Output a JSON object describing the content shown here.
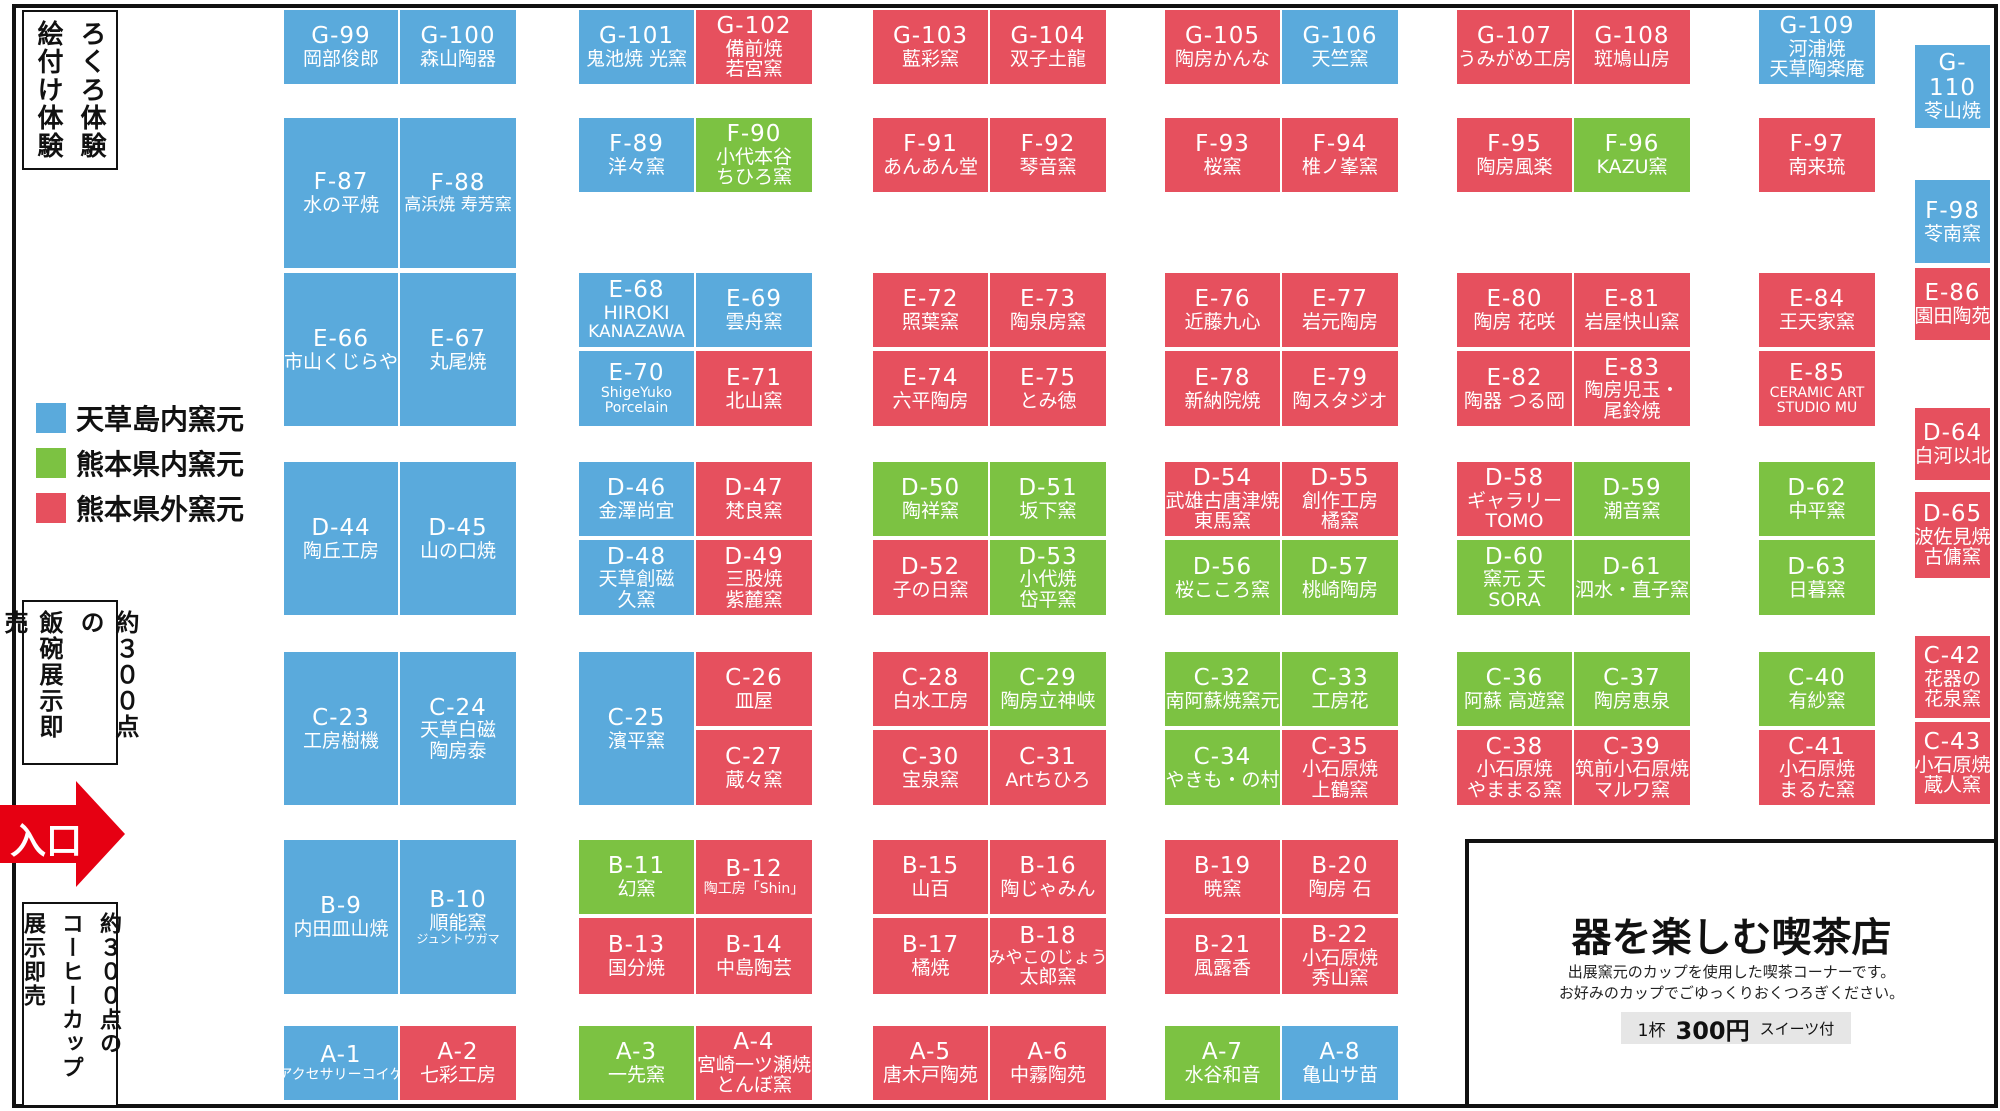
{
  "colors": {
    "amakusa": "#5aaadc",
    "kumamoto": "#7cc242",
    "outside": "#e6505e"
  },
  "legend": [
    {
      "key": "amakusa",
      "label": "天草島内窯元"
    },
    {
      "key": "kumamoto",
      "label": "熊本県内窯元"
    },
    {
      "key": "outside",
      "label": "熊本県外窯元"
    }
  ],
  "side_boxes": {
    "rokuro": [
      "ろくろ体験",
      "絵付け体験"
    ],
    "bowls": [
      "約３００点の",
      "飯碗展示即売"
    ],
    "cups": [
      "約３００点の",
      "コーヒーカップ",
      "展示即売"
    ]
  },
  "entrance": {
    "label": "入口"
  },
  "cafe": {
    "title": "器を楽しむ喫茶店",
    "description": [
      "出展窯元のカップを使用した喫茶コーナーです。",
      "お好みのカップでごゆっくりおくつろぎください。"
    ],
    "price_unit": "1杯",
    "price": "300円",
    "price_note": "スイーツ付"
  },
  "booths": [
    {
      "code": "G-99",
      "name": "岡部俊郎",
      "cat": "amakusa"
    },
    {
      "code": "G-100",
      "name": "森山陶器",
      "cat": "amakusa"
    },
    {
      "code": "G-101",
      "name": "鬼池焼 光窯",
      "cat": "amakusa"
    },
    {
      "code": "G-102",
      "name": "備前焼\n若宮窯",
      "cat": "outside"
    },
    {
      "code": "G-103",
      "name": "藍彩窯",
      "cat": "outside"
    },
    {
      "code": "G-104",
      "name": "双子土龍",
      "cat": "outside"
    },
    {
      "code": "G-105",
      "name": "陶房かんな",
      "cat": "outside"
    },
    {
      "code": "G-106",
      "name": "天竺窯",
      "cat": "amakusa"
    },
    {
      "code": "G-107",
      "name": "うみがめ工房",
      "cat": "outside"
    },
    {
      "code": "G-108",
      "name": "斑鳩山房",
      "cat": "outside"
    },
    {
      "code": "G-109",
      "name": "河浦焼\n天草陶楽庵",
      "cat": "amakusa"
    },
    {
      "code": "G-110",
      "name": "苓山焼",
      "cat": "amakusa"
    },
    {
      "code": "F-87",
      "name": "水の平焼",
      "cat": "amakusa"
    },
    {
      "code": "F-88",
      "name": "高浜焼 寿芳窯",
      "cat": "amakusa"
    },
    {
      "code": "F-89",
      "name": "洋々窯",
      "cat": "amakusa"
    },
    {
      "code": "F-90",
      "name": "小代本谷\nちひろ窯",
      "cat": "kumamoto"
    },
    {
      "code": "F-91",
      "name": "あんあん堂",
      "cat": "outside"
    },
    {
      "code": "F-92",
      "name": "琴音窯",
      "cat": "outside"
    },
    {
      "code": "F-93",
      "name": "桜窯",
      "cat": "outside"
    },
    {
      "code": "F-94",
      "name": "椎ノ峯窯",
      "cat": "outside"
    },
    {
      "code": "F-95",
      "name": "陶房風楽",
      "cat": "outside"
    },
    {
      "code": "F-96",
      "name": "KAZU窯",
      "cat": "kumamoto"
    },
    {
      "code": "F-97",
      "name": "南来琉",
      "cat": "outside"
    },
    {
      "code": "F-98",
      "name": "苓南窯",
      "cat": "amakusa"
    },
    {
      "code": "E-66",
      "name": "市山くじらや",
      "cat": "amakusa"
    },
    {
      "code": "E-67",
      "name": "丸尾焼",
      "cat": "amakusa"
    },
    {
      "code": "E-68",
      "name": "HIROKI\nKANAZAWA",
      "cat": "amakusa"
    },
    {
      "code": "E-69",
      "name": "雲舟窯",
      "cat": "amakusa"
    },
    {
      "code": "E-70",
      "name": "ShigeYuko\nPorcelain",
      "cat": "amakusa"
    },
    {
      "code": "E-71",
      "name": "北山窯",
      "cat": "outside"
    },
    {
      "code": "E-72",
      "name": "照葉窯",
      "cat": "outside"
    },
    {
      "code": "E-73",
      "name": "陶泉房窯",
      "cat": "outside"
    },
    {
      "code": "E-74",
      "name": "六平陶房",
      "cat": "outside"
    },
    {
      "code": "E-75",
      "name": "とみ徳",
      "cat": "outside"
    },
    {
      "code": "E-76",
      "name": "近藤九心",
      "cat": "outside"
    },
    {
      "code": "E-77",
      "name": "岩元陶房",
      "cat": "outside"
    },
    {
      "code": "E-78",
      "name": "新納院焼",
      "cat": "outside"
    },
    {
      "code": "E-79",
      "name": "陶スタジオ",
      "cat": "outside"
    },
    {
      "code": "E-80",
      "name": "陶房 花咲",
      "cat": "outside"
    },
    {
      "code": "E-81",
      "name": "岩屋快山窯",
      "cat": "outside"
    },
    {
      "code": "E-82",
      "name": "陶器 つる岡",
      "cat": "outside"
    },
    {
      "code": "E-83",
      "name": "陶房児玉・\n尾鈴焼",
      "cat": "outside"
    },
    {
      "code": "E-84",
      "name": "王天家窯",
      "cat": "outside"
    },
    {
      "code": "E-85",
      "name": "CERAMIC ART\nSTUDIO MU",
      "cat": "outside"
    },
    {
      "code": "E-86",
      "name": "園田陶苑",
      "cat": "outside"
    },
    {
      "code": "D-44",
      "name": "陶丘工房",
      "cat": "amakusa"
    },
    {
      "code": "D-45",
      "name": "山の口焼",
      "cat": "amakusa"
    },
    {
      "code": "D-46",
      "name": "金澤尚宜",
      "cat": "amakusa"
    },
    {
      "code": "D-47",
      "name": "梵良窯",
      "cat": "outside"
    },
    {
      "code": "D-48",
      "name": "天草創磁\n久窯",
      "cat": "amakusa"
    },
    {
      "code": "D-49",
      "name": "三股焼\n紫麓窯",
      "cat": "outside"
    },
    {
      "code": "D-50",
      "name": "陶祥窯",
      "cat": "kumamoto"
    },
    {
      "code": "D-51",
      "name": "坂下窯",
      "cat": "kumamoto"
    },
    {
      "code": "D-52",
      "name": "子の日窯",
      "cat": "outside"
    },
    {
      "code": "D-53",
      "name": "小代焼\n岱平窯",
      "cat": "kumamoto"
    },
    {
      "code": "D-54",
      "name": "武雄古唐津焼\n東馬窯",
      "cat": "outside"
    },
    {
      "code": "D-55",
      "name": "創作工房\n橘窯",
      "cat": "outside"
    },
    {
      "code": "D-56",
      "name": "桜こころ窯",
      "cat": "kumamoto"
    },
    {
      "code": "D-57",
      "name": "桃崎陶房",
      "cat": "kumamoto"
    },
    {
      "code": "D-58",
      "name": "ギャラリー\nTOMO",
      "cat": "outside"
    },
    {
      "code": "D-59",
      "name": "潮音窯",
      "cat": "kumamoto"
    },
    {
      "code": "D-60",
      "name": "窯元 天\nSORA",
      "cat": "kumamoto"
    },
    {
      "code": "D-61",
      "name": "泗水・直子窯",
      "cat": "kumamoto"
    },
    {
      "code": "D-62",
      "name": "中平窯",
      "cat": "kumamoto"
    },
    {
      "code": "D-63",
      "name": "日暮窯",
      "cat": "kumamoto"
    },
    {
      "code": "D-64",
      "name": "白河以北",
      "cat": "outside"
    },
    {
      "code": "D-65",
      "name": "波佐見焼\n古傭窯",
      "cat": "outside"
    },
    {
      "code": "C-23",
      "name": "工房樹機",
      "cat": "amakusa"
    },
    {
      "code": "C-24",
      "name": "天草白磁\n陶房泰",
      "cat": "amakusa"
    },
    {
      "code": "C-25",
      "name": "濱平窯",
      "cat": "amakusa"
    },
    {
      "code": "C-26",
      "name": "皿屋",
      "cat": "outside"
    },
    {
      "code": "C-27",
      "name": "蔵々窯",
      "cat": "outside"
    },
    {
      "code": "C-28",
      "name": "白水工房",
      "cat": "outside"
    },
    {
      "code": "C-29",
      "name": "陶房立神峡",
      "cat": "kumamoto"
    },
    {
      "code": "C-30",
      "name": "宝泉窯",
      "cat": "outside"
    },
    {
      "code": "C-31",
      "name": "Artちひろ",
      "cat": "outside"
    },
    {
      "code": "C-32",
      "name": "南阿蘇焼窯元",
      "cat": "kumamoto"
    },
    {
      "code": "C-33",
      "name": "工房花",
      "cat": "kumamoto"
    },
    {
      "code": "C-34",
      "name": "やきも・の村",
      "cat": "kumamoto"
    },
    {
      "code": "C-35",
      "name": "小石原焼\n上鶴窯",
      "cat": "outside"
    },
    {
      "code": "C-36",
      "name": "阿蘇 高遊窯",
      "cat": "kumamoto"
    },
    {
      "code": "C-37",
      "name": "陶房恵泉",
      "cat": "kumamoto"
    },
    {
      "code": "C-38",
      "name": "小石原焼\nやままる窯",
      "cat": "outside"
    },
    {
      "code": "C-39",
      "name": "筑前小石原焼\nマルワ窯",
      "cat": "outside"
    },
    {
      "code": "C-40",
      "name": "有紗窯",
      "cat": "kumamoto"
    },
    {
      "code": "C-41",
      "name": "小石原焼\nまるた窯",
      "cat": "outside"
    },
    {
      "code": "C-42",
      "name": "花器の\n花泉窯",
      "cat": "outside"
    },
    {
      "code": "C-43",
      "name": "小石原焼\n蔵人窯",
      "cat": "outside"
    },
    {
      "code": "B-9",
      "name": "内田皿山焼",
      "cat": "amakusa"
    },
    {
      "code": "B-10",
      "name": "順能窯",
      "sub": "ジュントウガマ",
      "cat": "amakusa"
    },
    {
      "code": "B-11",
      "name": "幻窯",
      "cat": "kumamoto"
    },
    {
      "code": "B-12",
      "name": "陶工房「Shin」",
      "cat": "outside"
    },
    {
      "code": "B-13",
      "name": "国分焼",
      "cat": "outside"
    },
    {
      "code": "B-14",
      "name": "中島陶芸",
      "cat": "outside"
    },
    {
      "code": "B-15",
      "name": "山百",
      "cat": "outside"
    },
    {
      "code": "B-16",
      "name": "陶じゃみん",
      "cat": "outside"
    },
    {
      "code": "B-17",
      "name": "橘焼",
      "cat": "outside"
    },
    {
      "code": "B-18",
      "name": "みやこのじょう\n太郎窯",
      "cat": "outside"
    },
    {
      "code": "B-19",
      "name": "暁窯",
      "cat": "outside"
    },
    {
      "code": "B-20",
      "name": "陶房 石",
      "cat": "outside"
    },
    {
      "code": "B-21",
      "name": "風露香",
      "cat": "outside"
    },
    {
      "code": "B-22",
      "name": "小石原焼\n秀山窯",
      "cat": "outside"
    },
    {
      "code": "A-1",
      "name": "アクセサリーコイケ",
      "cat": "amakusa"
    },
    {
      "code": "A-2",
      "name": "七彩工房",
      "cat": "outside"
    },
    {
      "code": "A-3",
      "name": "一先窯",
      "cat": "kumamoto"
    },
    {
      "code": "A-4",
      "name": "宮崎一ツ瀬焼\nとんぼ窯",
      "cat": "outside"
    },
    {
      "code": "A-5",
      "name": "唐木戸陶苑",
      "cat": "outside"
    },
    {
      "code": "A-6",
      "name": "中霧陶苑",
      "cat": "outside"
    },
    {
      "code": "A-7",
      "name": "水谷和音",
      "cat": "kumamoto"
    },
    {
      "code": "A-8",
      "name": "亀山サ苗",
      "cat": "amakusa"
    }
  ]
}
